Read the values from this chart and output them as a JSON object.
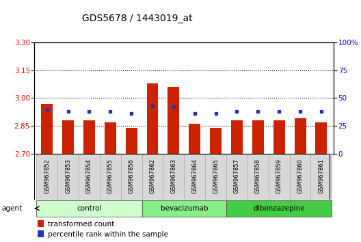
{
  "title": "GDS5678 / 1443019_at",
  "samples": [
    "GSM967852",
    "GSM967853",
    "GSM967854",
    "GSM967855",
    "GSM967856",
    "GSM967862",
    "GSM967863",
    "GSM967864",
    "GSM967865",
    "GSM967857",
    "GSM967858",
    "GSM967859",
    "GSM967860",
    "GSM967861"
  ],
  "groups": [
    {
      "name": "control",
      "color": "#ccffcc",
      "samples": [
        "GSM967852",
        "GSM967853",
        "GSM967854",
        "GSM967855",
        "GSM967856"
      ]
    },
    {
      "name": "bevacizumab",
      "color": "#88ee88",
      "samples": [
        "GSM967862",
        "GSM967863",
        "GSM967864",
        "GSM967865"
      ]
    },
    {
      "name": "dibenzazepine",
      "color": "#44cc44",
      "samples": [
        "GSM967857",
        "GSM967858",
        "GSM967859",
        "GSM967860",
        "GSM967861"
      ]
    }
  ],
  "transformed_counts": [
    2.97,
    2.88,
    2.88,
    2.87,
    2.84,
    3.08,
    3.06,
    2.86,
    2.84,
    2.88,
    2.88,
    2.88,
    2.89,
    2.87
  ],
  "percentile_ranks": [
    40,
    38,
    38,
    38,
    36,
    43,
    42,
    36,
    36,
    38,
    38,
    38,
    38,
    38
  ],
  "ylim_left": [
    2.7,
    3.3
  ],
  "ylim_right": [
    0,
    100
  ],
  "yticks_left": [
    2.7,
    2.85,
    3.0,
    3.15,
    3.3
  ],
  "yticks_right": [
    0,
    25,
    50,
    75,
    100
  ],
  "bar_color": "#cc2200",
  "dot_color": "#2233bb",
  "plot_bg": "#ffffff",
  "legend_items": [
    {
      "label": "transformed count",
      "color": "#cc2200"
    },
    {
      "label": "percentile rank within the sample",
      "color": "#2233bb"
    }
  ]
}
